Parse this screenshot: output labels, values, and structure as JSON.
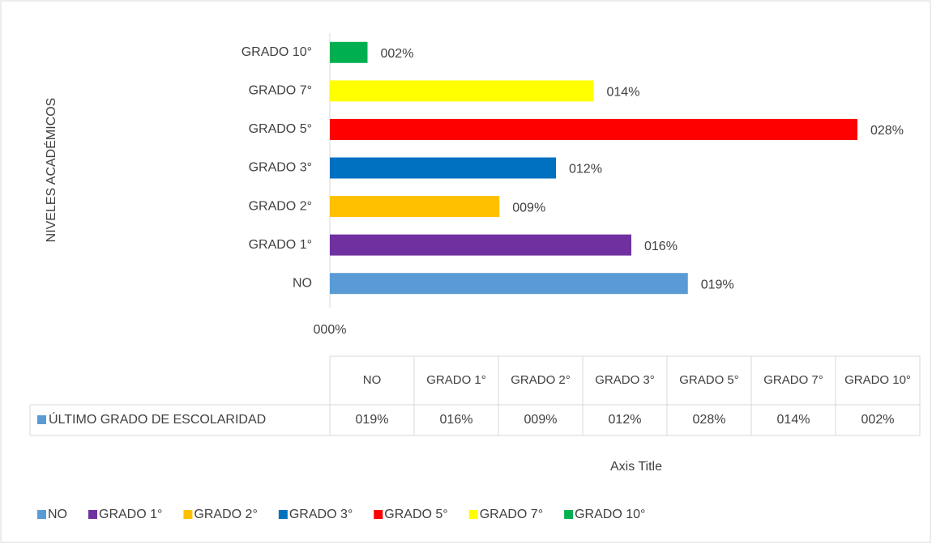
{
  "chart_data": {
    "type": "bar",
    "orientation": "horizontal",
    "y_label": "NIVELES ACADÉMICOS",
    "x_label": "Axis Title",
    "categories": [
      "NO",
      "GRADO 1°",
      "GRADO 2°",
      "GRADO 3°",
      "GRADO 5°",
      "GRADO 7°",
      "GRADO 10°"
    ],
    "colors": [
      "#5b9bd5",
      "#7030a0",
      "#ffc000",
      "#0070c0",
      "#ff0000",
      "#ffff00",
      "#00b050"
    ],
    "series": [
      {
        "name": "ÚLTIMO GRADO DE ESCOLARIDAD",
        "color": "#5b9bd5",
        "values": [
          19,
          16,
          9,
          12,
          28,
          14,
          2
        ],
        "value_labels": [
          "019%",
          "016%",
          "009%",
          "012%",
          "028%",
          "014%",
          "002%"
        ]
      }
    ],
    "xlim": [
      0,
      28
    ],
    "xticks": [
      {
        "value": 0,
        "label": "000%"
      }
    ],
    "data_table": true,
    "legend": "bottom"
  }
}
